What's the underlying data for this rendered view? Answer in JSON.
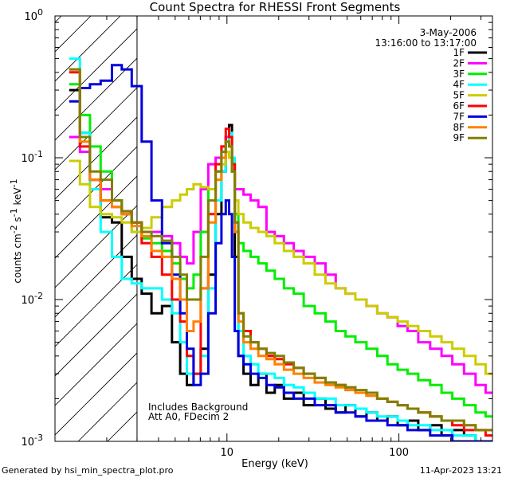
{
  "chart_data": {
    "type": "line",
    "title": "Count Spectra for RHESSI Front Segments",
    "xlabel": "Energy (keV)",
    "ylabel_parts": [
      "counts cm",
      "-2",
      " s",
      "-1",
      " keV",
      "-1"
    ],
    "xscale": "log",
    "yscale": "log",
    "xlim": [
      1,
      350
    ],
    "ylim": [
      0.001,
      1
    ],
    "x_ticks": [
      {
        "value": 10,
        "label": "10"
      },
      {
        "value": 100,
        "label": "100"
      }
    ],
    "y_ticks": [
      {
        "value": 1,
        "base": "10",
        "exp": "0"
      },
      {
        "value": 0.1,
        "base": "10",
        "exp": "-1"
      },
      {
        "value": 0.01,
        "base": "10",
        "exp": "-2"
      },
      {
        "value": 0.001,
        "base": "10",
        "exp": "-3"
      }
    ],
    "date": "3-May-2006",
    "time_range": "13:16:00 to 13:17:00",
    "hatched_region_max_energy": 3,
    "annotations": [
      "Includes Background",
      "Att A0, FDecim 2"
    ],
    "series": [
      {
        "name": "1F",
        "color": "#000000",
        "x": [
          1.3,
          1.5,
          1.7,
          2.0,
          2.3,
          2.6,
          3.0,
          3.4,
          3.9,
          4.5,
          5.1,
          5.6,
          6.1,
          6.7,
          7.4,
          8.2,
          9.0,
          9.6,
          10.1,
          10.5,
          10.9,
          11.3,
          12.0,
          13.0,
          14.5,
          16,
          18,
          20,
          23,
          26,
          30,
          35,
          40,
          46,
          52,
          60,
          70,
          80,
          92,
          105,
          120,
          140,
          165,
          190,
          220,
          260,
          300,
          340
        ],
        "y": [
          0.3,
          0.15,
          0.07,
          0.038,
          0.035,
          0.02,
          0.014,
          0.011,
          0.008,
          0.009,
          0.005,
          0.003,
          0.0025,
          0.003,
          0.0045,
          0.015,
          0.04,
          0.08,
          0.14,
          0.17,
          0.09,
          0.02,
          0.004,
          0.003,
          0.0025,
          0.003,
          0.0022,
          0.0025,
          0.002,
          0.0022,
          0.0018,
          0.002,
          0.0017,
          0.0016,
          0.0018,
          0.0015,
          0.0016,
          0.0014,
          0.0015,
          0.0013,
          0.0014,
          0.0012,
          0.0013,
          0.0011,
          0.0012,
          0.0011,
          0.001,
          0.001
        ]
      },
      {
        "name": "2F",
        "color": "#ff00ff",
        "x": [
          1.3,
          1.5,
          1.7,
          2.0,
          2.3,
          2.6,
          3.0,
          3.4,
          3.9,
          4.5,
          5.1,
          5.6,
          6.1,
          6.7,
          7.4,
          8.2,
          9.0,
          9.6,
          10.1,
          10.5,
          10.9,
          11.3,
          12.0,
          13.0,
          14.5,
          16,
          18,
          20,
          23,
          26,
          30,
          35,
          40,
          46,
          52,
          60,
          70,
          80,
          92,
          105,
          120,
          140,
          165,
          190,
          220,
          260,
          300,
          340
        ],
        "y": [
          0.14,
          0.11,
          0.07,
          0.06,
          0.05,
          0.042,
          0.035,
          0.03,
          0.03,
          0.028,
          0.025,
          0.02,
          0.018,
          0.03,
          0.06,
          0.09,
          0.1,
          0.12,
          0.14,
          0.12,
          0.09,
          0.06,
          0.06,
          0.055,
          0.05,
          0.045,
          0.03,
          0.028,
          0.025,
          0.022,
          0.02,
          0.018,
          0.015,
          0.012,
          0.011,
          0.01,
          0.009,
          0.008,
          0.0075,
          0.0065,
          0.006,
          0.005,
          0.0045,
          0.004,
          0.0035,
          0.003,
          0.0025,
          0.0022
        ]
      },
      {
        "name": "3F",
        "color": "#00ee00",
        "x": [
          1.3,
          1.5,
          1.7,
          2.0,
          2.3,
          2.6,
          3.0,
          3.4,
          3.9,
          4.5,
          5.1,
          5.6,
          6.1,
          6.7,
          7.4,
          8.2,
          9.0,
          9.6,
          10.1,
          10.5,
          10.9,
          11.3,
          12.0,
          13.0,
          14.5,
          16,
          18,
          20,
          23,
          26,
          30,
          35,
          40,
          46,
          52,
          60,
          70,
          80,
          92,
          105,
          120,
          140,
          165,
          190,
          220,
          260,
          300,
          340
        ],
        "y": [
          0.33,
          0.2,
          0.12,
          0.08,
          0.05,
          0.04,
          0.03,
          0.027,
          0.025,
          0.022,
          0.018,
          0.014,
          0.012,
          0.015,
          0.03,
          0.06,
          0.08,
          0.1,
          0.13,
          0.12,
          0.08,
          0.04,
          0.025,
          0.022,
          0.02,
          0.018,
          0.016,
          0.014,
          0.012,
          0.011,
          0.009,
          0.008,
          0.007,
          0.006,
          0.0055,
          0.005,
          0.0045,
          0.004,
          0.0035,
          0.0032,
          0.003,
          0.0027,
          0.0025,
          0.0022,
          0.002,
          0.0018,
          0.0016,
          0.0015
        ]
      },
      {
        "name": "4F",
        "color": "#00ffff",
        "x": [
          1.3,
          1.5,
          1.7,
          2.0,
          2.3,
          2.6,
          3.0,
          3.4,
          3.9,
          4.5,
          5.1,
          5.6,
          6.1,
          6.7,
          7.4,
          8.2,
          9.0,
          9.6,
          10.1,
          10.5,
          10.9,
          11.3,
          12.0,
          13.0,
          14.5,
          16,
          18,
          20,
          23,
          26,
          30,
          35,
          40,
          46,
          52,
          60,
          70,
          80,
          92,
          105,
          120,
          140,
          165,
          190,
          220,
          260,
          300,
          340
        ],
        "y": [
          0.5,
          0.15,
          0.06,
          0.03,
          0.02,
          0.014,
          0.013,
          0.012,
          0.012,
          0.01,
          0.008,
          0.005,
          0.003,
          0.003,
          0.004,
          0.012,
          0.05,
          0.08,
          0.13,
          0.15,
          0.1,
          0.03,
          0.006,
          0.004,
          0.0035,
          0.003,
          0.003,
          0.0028,
          0.0025,
          0.0024,
          0.0022,
          0.002,
          0.002,
          0.0018,
          0.0018,
          0.0017,
          0.0016,
          0.0015,
          0.0015,
          0.0014,
          0.0013,
          0.0013,
          0.0012,
          0.0012,
          0.0011,
          0.0011,
          0.001,
          0.001
        ]
      },
      {
        "name": "5F",
        "color": "#cccc00",
        "x": [
          1.3,
          1.5,
          1.7,
          2.0,
          2.3,
          2.6,
          3.0,
          3.4,
          3.9,
          4.5,
          5.1,
          5.6,
          6.1,
          6.7,
          7.4,
          8.2,
          9.0,
          9.6,
          10.1,
          10.5,
          10.9,
          11.3,
          12.0,
          13.0,
          14.5,
          16,
          18,
          20,
          23,
          26,
          30,
          35,
          40,
          46,
          52,
          60,
          70,
          80,
          92,
          105,
          120,
          140,
          165,
          190,
          220,
          260,
          300,
          340
        ],
        "y": [
          0.095,
          0.065,
          0.045,
          0.04,
          0.038,
          0.035,
          0.03,
          0.032,
          0.038,
          0.045,
          0.05,
          0.055,
          0.06,
          0.065,
          0.062,
          0.06,
          0.07,
          0.09,
          0.11,
          0.1,
          0.08,
          0.05,
          0.04,
          0.035,
          0.032,
          0.03,
          0.028,
          0.025,
          0.022,
          0.02,
          0.018,
          0.015,
          0.013,
          0.012,
          0.011,
          0.01,
          0.009,
          0.008,
          0.0075,
          0.007,
          0.0065,
          0.006,
          0.0055,
          0.005,
          0.0045,
          0.004,
          0.0035,
          0.003
        ]
      },
      {
        "name": "6F",
        "color": "#ff0000",
        "x": [
          1.3,
          1.5,
          1.7,
          2.0,
          2.3,
          2.6,
          3.0,
          3.4,
          3.9,
          4.5,
          5.1,
          5.6,
          6.1,
          6.7,
          7.4,
          8.2,
          9.0,
          9.6,
          10.1,
          10.5,
          10.9,
          11.3,
          12.0,
          13.0,
          14.5,
          16,
          18,
          20,
          23,
          26,
          30,
          35,
          40,
          46,
          52,
          60,
          70,
          80,
          92,
          105,
          120,
          140,
          165,
          190,
          220,
          260,
          300,
          340
        ],
        "y": [
          0.4,
          0.12,
          0.07,
          0.05,
          0.045,
          0.04,
          0.035,
          0.025,
          0.02,
          0.015,
          0.01,
          0.007,
          0.004,
          0.003,
          0.012,
          0.04,
          0.09,
          0.12,
          0.16,
          0.14,
          0.09,
          0.03,
          0.008,
          0.006,
          0.005,
          0.0045,
          0.004,
          0.0038,
          0.0035,
          0.0033,
          0.003,
          0.0028,
          0.0026,
          0.0025,
          0.0024,
          0.0022,
          0.0021,
          0.002,
          0.0019,
          0.0018,
          0.0017,
          0.0016,
          0.0015,
          0.0014,
          0.0013,
          0.0012,
          0.0012,
          0.0011
        ]
      },
      {
        "name": "7F",
        "color": "#0000dd",
        "x": [
          1.3,
          1.5,
          1.7,
          2.0,
          2.3,
          2.6,
          3.0,
          3.4,
          3.9,
          4.5,
          5.1,
          5.6,
          6.1,
          6.7,
          7.4,
          8.2,
          9.0,
          9.6,
          10.1,
          10.5,
          10.9,
          11.3,
          12.0,
          13.0,
          14.5,
          16,
          18,
          20,
          23,
          26,
          30,
          35,
          40,
          46,
          52,
          60,
          70,
          80,
          92,
          105,
          120,
          140,
          165,
          190,
          220,
          260,
          300,
          340
        ],
        "y": [
          0.25,
          0.31,
          0.33,
          0.35,
          0.45,
          0.42,
          0.32,
          0.13,
          0.05,
          0.025,
          0.015,
          0.008,
          0.0045,
          0.0025,
          0.003,
          0.008,
          0.025,
          0.04,
          0.05,
          0.04,
          0.02,
          0.006,
          0.004,
          0.0035,
          0.003,
          0.0028,
          0.0025,
          0.0024,
          0.0022,
          0.002,
          0.002,
          0.0018,
          0.0018,
          0.0016,
          0.0016,
          0.0015,
          0.0014,
          0.0014,
          0.0013,
          0.0013,
          0.0012,
          0.0012,
          0.0011,
          0.0011,
          0.001,
          0.001,
          0.001,
          0.001
        ]
      },
      {
        "name": "8F",
        "color": "#ff8000",
        "x": [
          1.3,
          1.5,
          1.7,
          2.0,
          2.3,
          2.6,
          3.0,
          3.4,
          3.9,
          4.5,
          5.1,
          5.6,
          6.1,
          6.7,
          7.4,
          8.2,
          9.0,
          9.6,
          10.1,
          10.5,
          10.9,
          11.3,
          12.0,
          13.0,
          14.5,
          16,
          18,
          20,
          23,
          26,
          30,
          35,
          40,
          46,
          52,
          60,
          70,
          80,
          92,
          105,
          120,
          140,
          165,
          190,
          220,
          260,
          300,
          340
        ],
        "y": [
          0.42,
          0.13,
          0.07,
          0.05,
          0.045,
          0.04,
          0.033,
          0.028,
          0.022,
          0.02,
          0.014,
          0.01,
          0.006,
          0.007,
          0.012,
          0.035,
          0.07,
          0.1,
          0.13,
          0.12,
          0.08,
          0.03,
          0.007,
          0.005,
          0.0045,
          0.004,
          0.0038,
          0.0035,
          0.0032,
          0.003,
          0.0028,
          0.0026,
          0.0025,
          0.0024,
          0.0023,
          0.0022,
          0.0021,
          0.002,
          0.0019,
          0.0018,
          0.0017,
          0.0016,
          0.0015,
          0.0014,
          0.0014,
          0.0013,
          0.0012,
          0.0012
        ]
      },
      {
        "name": "9F",
        "color": "#808000",
        "x": [
          1.3,
          1.5,
          1.7,
          2.0,
          2.3,
          2.6,
          3.0,
          3.4,
          3.9,
          4.5,
          5.1,
          5.6,
          6.1,
          6.7,
          7.4,
          8.2,
          9.0,
          9.6,
          10.1,
          10.5,
          10.9,
          11.3,
          12.0,
          13.0,
          14.5,
          16,
          18,
          20,
          23,
          26,
          30,
          35,
          40,
          46,
          52,
          60,
          70,
          80,
          92,
          105,
          120,
          140,
          165,
          190,
          220,
          260,
          300,
          340
        ],
        "y": [
          0.42,
          0.14,
          0.08,
          0.07,
          0.05,
          0.042,
          0.035,
          0.03,
          0.028,
          0.026,
          0.02,
          0.015,
          0.01,
          0.01,
          0.02,
          0.05,
          0.08,
          0.11,
          0.13,
          0.12,
          0.08,
          0.035,
          0.008,
          0.0055,
          0.005,
          0.0045,
          0.0042,
          0.004,
          0.0036,
          0.0033,
          0.003,
          0.0028,
          0.0026,
          0.0025,
          0.0024,
          0.0023,
          0.0022,
          0.002,
          0.0019,
          0.0018,
          0.0017,
          0.0016,
          0.0015,
          0.0014,
          0.0014,
          0.0013,
          0.0012,
          0.0012
        ]
      }
    ]
  },
  "footer": {
    "generated_by": "Generated by hsi_min_spectra_plot.pro",
    "date": "11-Apr-2023 13:21"
  }
}
